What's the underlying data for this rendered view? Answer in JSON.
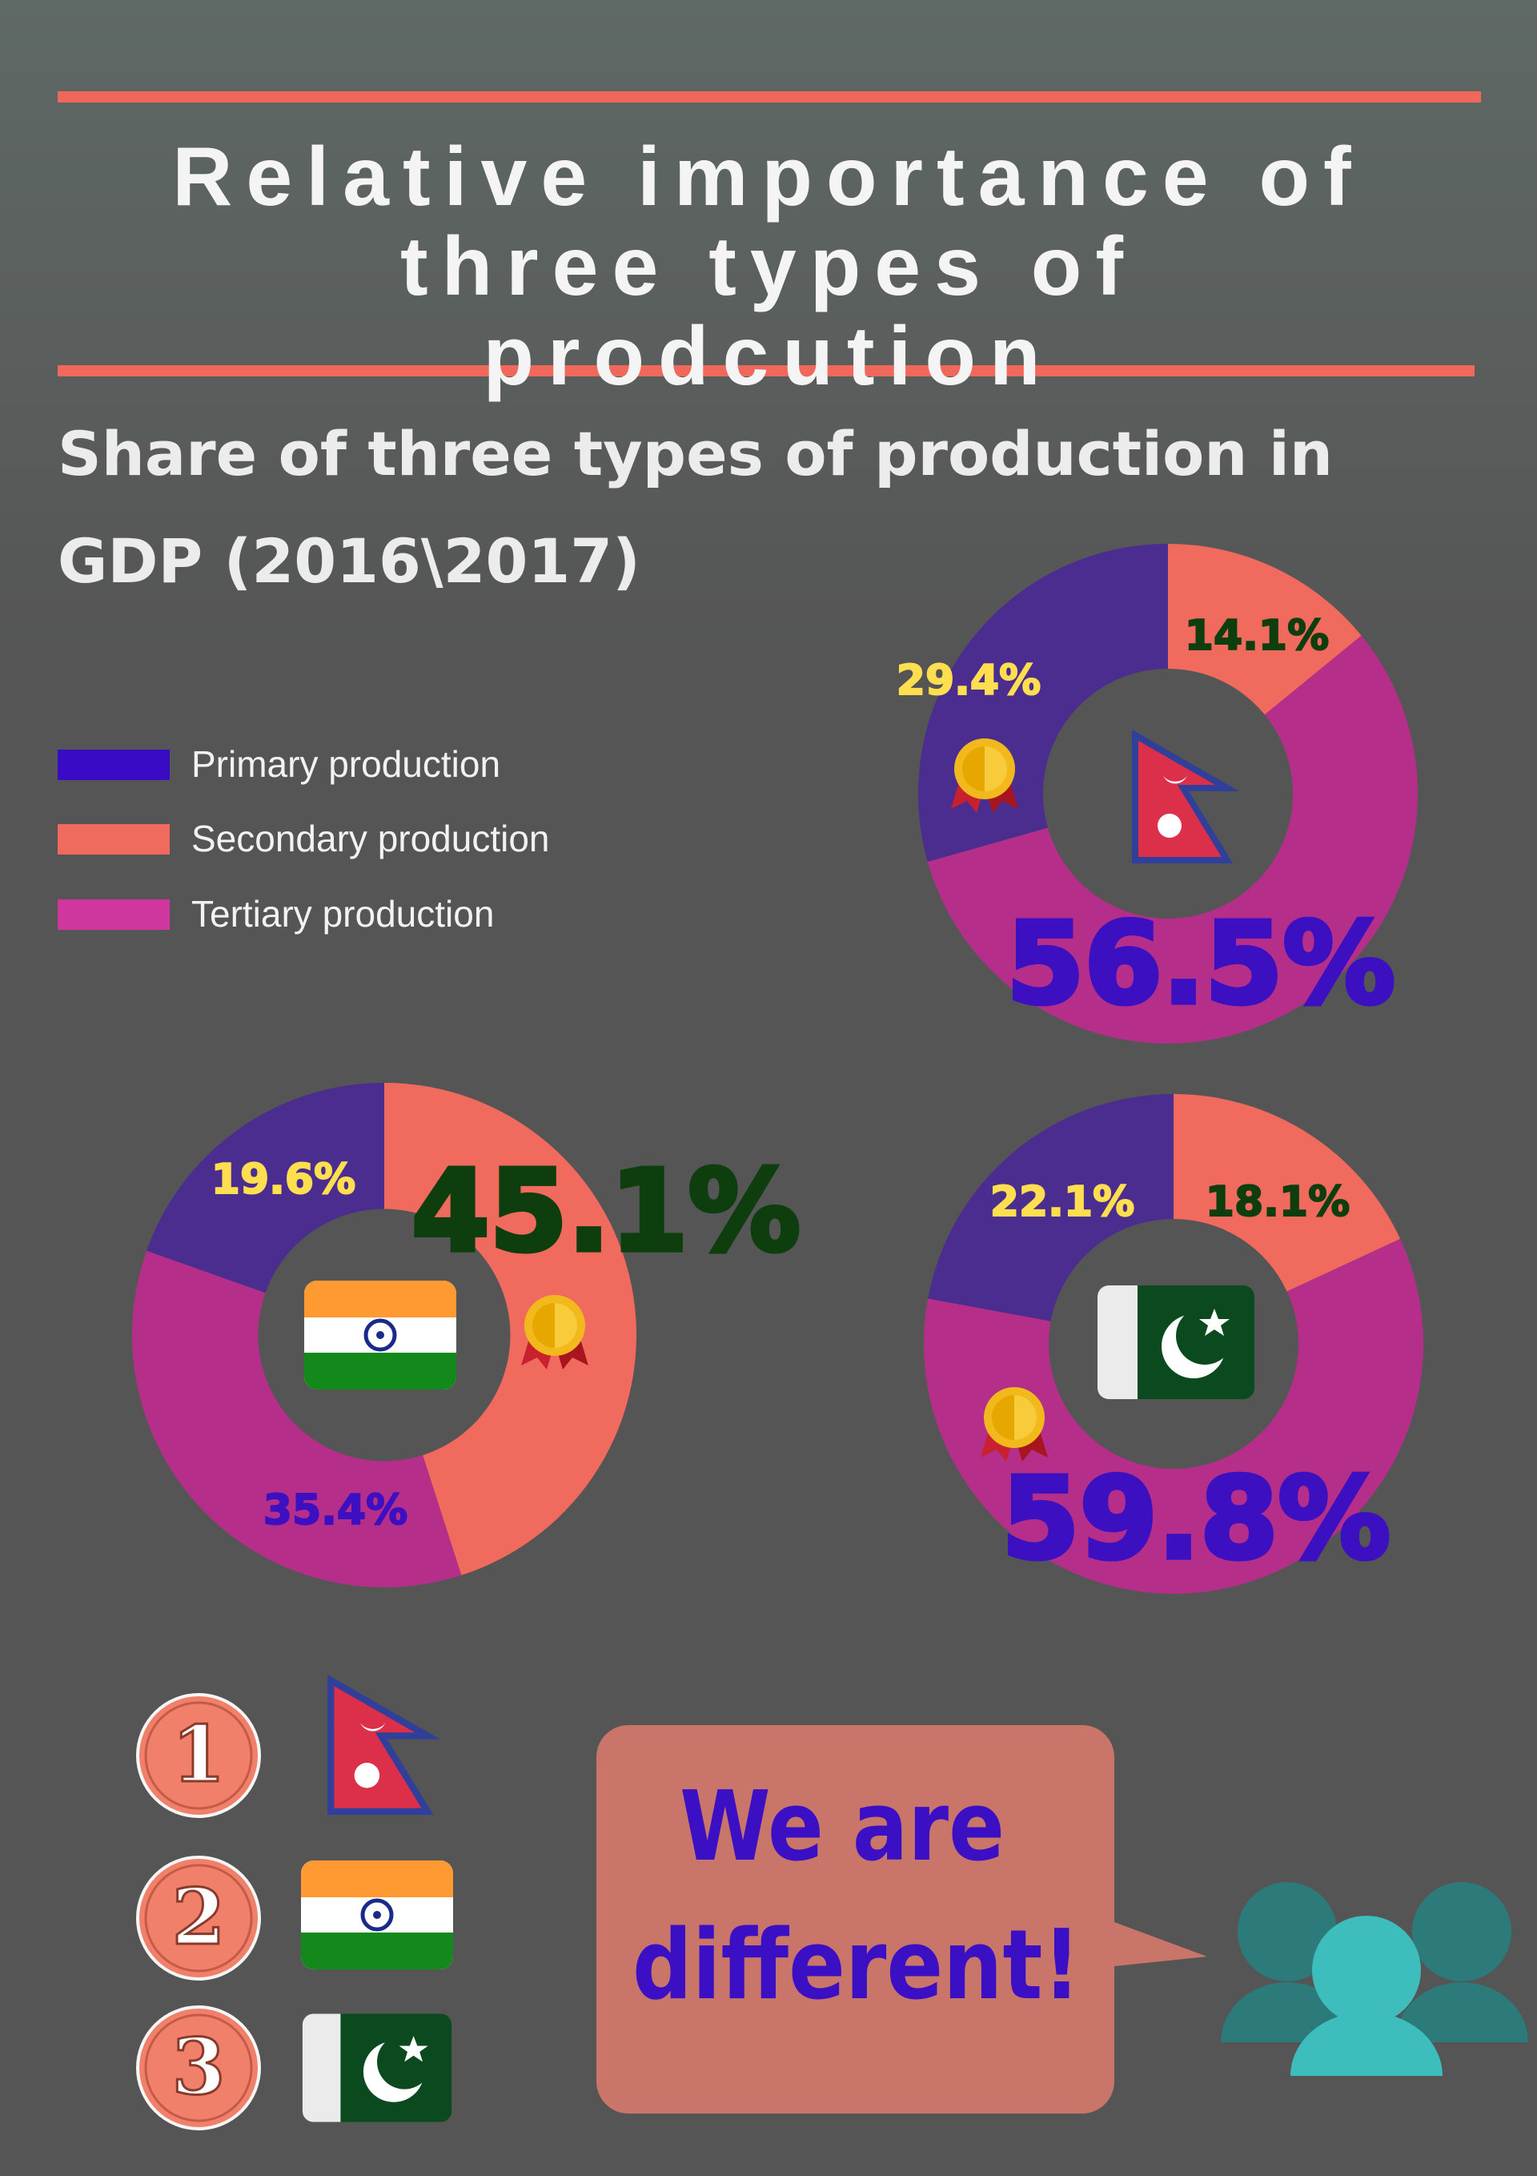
{
  "header": {
    "title": "Relative importance of three types of prodcution",
    "subtitle": "Share of three types of production in GDP (2016\\2017)"
  },
  "chart_data": {
    "type": "pie",
    "donut": true,
    "categories": [
      "Primary production",
      "Secondary production",
      "Tertiary production"
    ],
    "colors": [
      "#4b2d8f",
      "#f06a5e",
      "#b52f8a"
    ],
    "legend_colors": [
      "#3a0bc4",
      "#f06a5e",
      "#d0379e"
    ],
    "label_colors": [
      "#ffdf4f",
      "#0e3d0e",
      "#3c10c0"
    ],
    "series": [
      {
        "values": [
          29.4,
          14.1,
          56.5
        ],
        "value_labels": [
          "29.4%",
          "14.1%",
          "56.5%"
        ]
      },
      {
        "values": [
          19.6,
          45.1,
          35.4
        ],
        "value_labels": [
          "19.6%",
          "45.1%",
          "35.4%"
        ]
      },
      {
        "values": [
          22.1,
          18.1,
          59.8
        ],
        "value_labels": [
          "22.1%",
          "18.1%",
          "59.8%"
        ]
      }
    ]
  },
  "ranking": [
    1,
    2,
    3
  ],
  "callout": [
    "We are",
    "different!"
  ]
}
